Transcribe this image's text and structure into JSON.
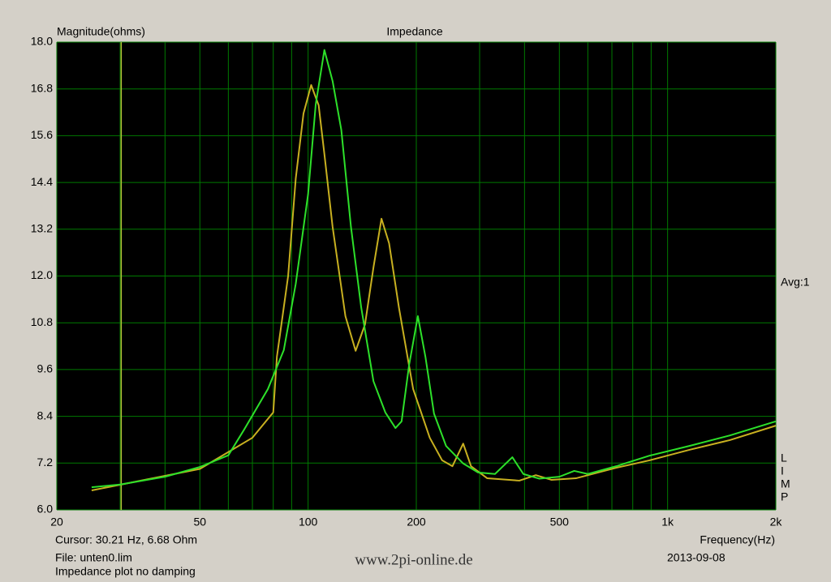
{
  "chart_data": {
    "type": "line",
    "title": "Impedance",
    "y_label": "Magnitude(ohms)",
    "x_label": "Frequency(Hz)",
    "x_scale": "log",
    "xlim": [
      20,
      2000
    ],
    "xticks": [
      20,
      50,
      100,
      200,
      500,
      {
        "value": 1000,
        "label": "1k"
      },
      {
        "value": 2000,
        "label": "2k"
      }
    ],
    "x_minor_grid": [
      30,
      40,
      60,
      70,
      80,
      90,
      300,
      400,
      600,
      700,
      800,
      900
    ],
    "ylim": [
      6,
      18
    ],
    "yticks": [
      {
        "value": 6,
        "label": "6.0"
      },
      7.2,
      8.4,
      9.6,
      10.8,
      {
        "value": 12,
        "label": "12.0"
      },
      13.2,
      14.4,
      15.6,
      16.8,
      {
        "value": 18,
        "label": "18.0"
      }
    ],
    "grid": true,
    "grid_color": "#007a00",
    "background": "#000000",
    "cursor_x": 30.21,
    "cursor_color": "#b8c43a",
    "series": [
      {
        "name": "unten0.lim",
        "color": "#2de02a",
        "x": [
          25,
          30,
          40,
          50,
          60,
          66.4,
          77.3,
          85.6,
          92.4,
          100,
          105,
          111,
          117,
          123.7,
          131.6,
          140.5,
          152,
          164,
          175,
          182,
          191,
          202,
          212,
          224,
          242,
          270,
          297,
          331,
          370,
          397,
          440,
          500,
          550,
          600,
          720,
          890,
          1150,
          1490,
          2000
        ],
        "values": [
          6.58,
          6.65,
          6.85,
          7.1,
          7.4,
          8.06,
          9.1,
          10.1,
          11.8,
          14.1,
          16.4,
          17.8,
          17.0,
          15.75,
          13.26,
          11.2,
          9.3,
          8.5,
          8.1,
          8.27,
          9.72,
          10.97,
          9.93,
          8.47,
          7.64,
          7.19,
          6.96,
          6.92,
          7.35,
          6.92,
          6.8,
          6.85,
          7.0,
          6.92,
          7.12,
          7.39,
          7.64,
          7.91,
          8.27
        ]
      },
      {
        "color": "#c8b020",
        "x": [
          25,
          50,
          70,
          80,
          81.9,
          88,
          92.4,
          97.1,
          102,
          107,
          111,
          117,
          127,
          135.6,
          144,
          152,
          160,
          168,
          179,
          196,
          218,
          236,
          252,
          270,
          284,
          315,
          387,
          430,
          475,
          556,
          720,
          890,
          1150,
          1490,
          2000
        ],
        "values": [
          6.5,
          7.05,
          7.85,
          8.5,
          9.93,
          12.0,
          14.5,
          16.17,
          16.9,
          16.38,
          15.13,
          13.26,
          10.97,
          10.08,
          10.76,
          12.22,
          13.47,
          12.84,
          11.18,
          9.1,
          7.85,
          7.27,
          7.12,
          7.7,
          7.12,
          6.81,
          6.75,
          6.89,
          6.77,
          6.81,
          7.08,
          7.27,
          7.54,
          7.79,
          8.16
        ]
      }
    ],
    "avg_label": "Avg:1",
    "side_letters": [
      "L",
      "I",
      "M",
      "P"
    ],
    "cursor_label": "Cursor: 30.21 Hz, 6.68 Ohm",
    "file_label": "File: unten0.lim",
    "description": "Impedance plot no damping",
    "watermark": "www.2pi-online.de",
    "date": "2013-09-08"
  }
}
